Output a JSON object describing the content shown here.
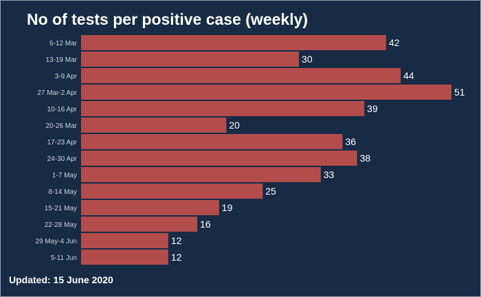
{
  "chart_data": {
    "type": "bar",
    "orientation": "horizontal",
    "title": "No of tests per positive case (weekly)",
    "categories": [
      "6-12 Mar",
      "13-19 Mar",
      "3-9 Apr",
      "27 Mar-2 Apr",
      "10-16 Apr",
      "20-26 Mar",
      "17-23 Apr",
      "24-30 Apr",
      "1-7 May",
      "8-14 May",
      "15-21 May",
      "22-28 May",
      "29 May-4 Jun",
      "5-11 Jun"
    ],
    "values": [
      42,
      30,
      44,
      51,
      39,
      20,
      36,
      38,
      33,
      25,
      19,
      16,
      12,
      12
    ],
    "xlim": [
      0,
      51
    ],
    "grid": false,
    "bar_color": "#b34d4b",
    "background_color": "#172b45"
  },
  "footer": {
    "updated": "Updated: 15 June 2020"
  }
}
